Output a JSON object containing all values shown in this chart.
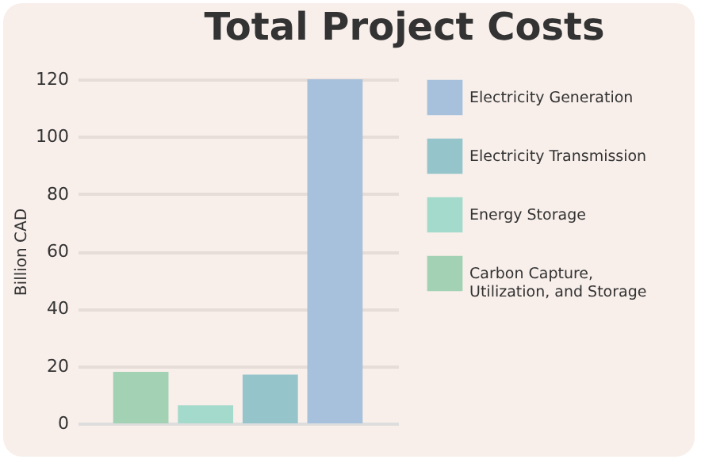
{
  "chart_data": {
    "type": "bar",
    "title": "Total Project Costs",
    "ylabel": "Billion CAD",
    "categories": [
      null,
      null,
      null,
      null
    ],
    "series": [
      {
        "name": "Electricity Generation",
        "color": "#a7c1dc",
        "values": [
          null,
          null,
          null,
          120
        ]
      },
      {
        "name": "Electricity Transmission",
        "color": "#96c4cb",
        "values": [
          null,
          null,
          17,
          null
        ]
      },
      {
        "name": "Energy Storage",
        "color": "#a4dacb",
        "values": [
          null,
          6.3,
          null,
          null
        ]
      },
      {
        "name": "Carbon Capture, Utilization, and Storage",
        "color": "#a2d2b3",
        "values": [
          18,
          null,
          null,
          null
        ]
      }
    ],
    "ylim": [
      0,
      120
    ],
    "yticks": [
      0,
      20,
      40,
      60,
      80,
      100,
      120
    ],
    "grid": "y",
    "legend": "right"
  }
}
